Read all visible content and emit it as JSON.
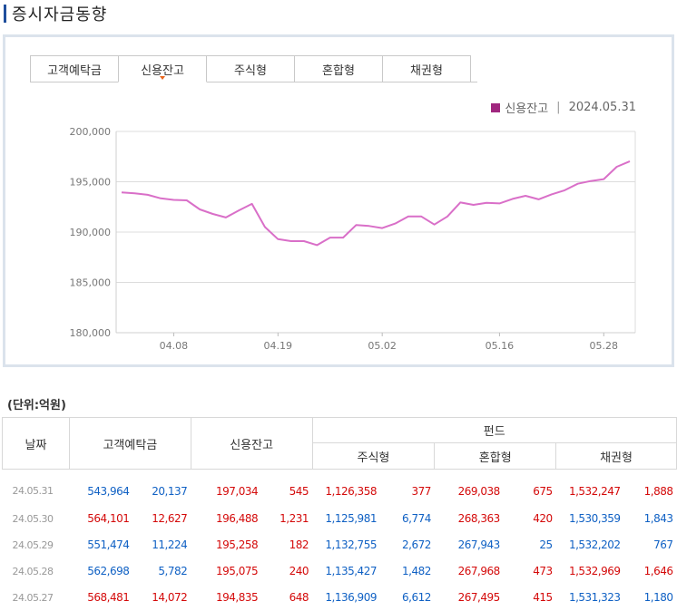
{
  "page": {
    "title": "증시자금동향"
  },
  "tabs": [
    {
      "label": "고객예탁금",
      "active": false
    },
    {
      "label": "신용잔고",
      "active": true
    },
    {
      "label": "주식형",
      "active": false
    },
    {
      "label": "혼합형",
      "active": false
    },
    {
      "label": "채권형",
      "active": false
    }
  ],
  "legend": {
    "series": "신용잔고",
    "separator": "|",
    "date": "2024.05.31",
    "color": "#a0277f"
  },
  "chart_data": {
    "type": "line",
    "title": "",
    "xlabel": "",
    "ylabel": "",
    "ylim": [
      180000,
      200000
    ],
    "y_ticks": [
      "180,000",
      "185,000",
      "190,000",
      "195,000",
      "200,000"
    ],
    "y_tick_values": [
      180000,
      185000,
      190000,
      195000,
      200000
    ],
    "x_tick_labels": [
      "04.08",
      "04.19",
      "05.02",
      "05.16",
      "05.28"
    ],
    "x_tick_index": [
      4,
      12,
      20,
      29,
      37
    ],
    "grid": true,
    "line_color": "#d96fc8",
    "series": [
      {
        "name": "신용잔고",
        "values": [
          193950,
          193850,
          193700,
          193350,
          193200,
          193150,
          192250,
          191800,
          191450,
          192150,
          192800,
          190500,
          189300,
          189100,
          189100,
          188700,
          189450,
          189450,
          190700,
          190600,
          190400,
          190850,
          191550,
          191550,
          190750,
          191550,
          192950,
          192700,
          192900,
          192850,
          193300,
          193600,
          193250,
          193750,
          194150,
          194800,
          195075,
          195258,
          196488,
          197034
        ]
      }
    ]
  },
  "table": {
    "unit": "(단위:억원)",
    "headers": {
      "date": "날짜",
      "deposit": "고객예탁금",
      "credit": "신용잔고",
      "fund": "펀드",
      "stock": "주식형",
      "mixed": "혼합형",
      "bond": "채권형"
    },
    "rows": [
      {
        "date": "24.05.31",
        "c": [
          "543,964",
          "20,137",
          "197,034",
          "545",
          "1,126,358",
          "377",
          "269,038",
          "675",
          "1,532,247",
          "1,888"
        ],
        "k": [
          "dn",
          "dn",
          "up",
          "up",
          "up",
          "up",
          "up",
          "up",
          "up",
          "up"
        ]
      },
      {
        "date": "24.05.30",
        "c": [
          "564,101",
          "12,627",
          "196,488",
          "1,231",
          "1,125,981",
          "6,774",
          "268,363",
          "420",
          "1,530,359",
          "1,843"
        ],
        "k": [
          "up",
          "up",
          "up",
          "up",
          "dn",
          "dn",
          "up",
          "up",
          "dn",
          "dn"
        ]
      },
      {
        "date": "24.05.29",
        "c": [
          "551,474",
          "11,224",
          "195,258",
          "182",
          "1,132,755",
          "2,672",
          "267,943",
          "25",
          "1,532,202",
          "767"
        ],
        "k": [
          "dn",
          "dn",
          "up",
          "up",
          "dn",
          "dn",
          "dn",
          "dn",
          "dn",
          "dn"
        ]
      },
      {
        "date": "24.05.28",
        "c": [
          "562,698",
          "5,782",
          "195,075",
          "240",
          "1,135,427",
          "1,482",
          "267,968",
          "473",
          "1,532,969",
          "1,646"
        ],
        "k": [
          "dn",
          "dn",
          "up",
          "up",
          "dn",
          "dn",
          "up",
          "up",
          "up",
          "up"
        ]
      },
      {
        "date": "24.05.27",
        "c": [
          "568,481",
          "14,072",
          "194,835",
          "648",
          "1,136,909",
          "6,612",
          "267,495",
          "415",
          "1,531,323",
          "1,180"
        ],
        "k": [
          "up",
          "up",
          "up",
          "up",
          "dn",
          "dn",
          "up",
          "up",
          "dn",
          "dn"
        ]
      }
    ]
  }
}
